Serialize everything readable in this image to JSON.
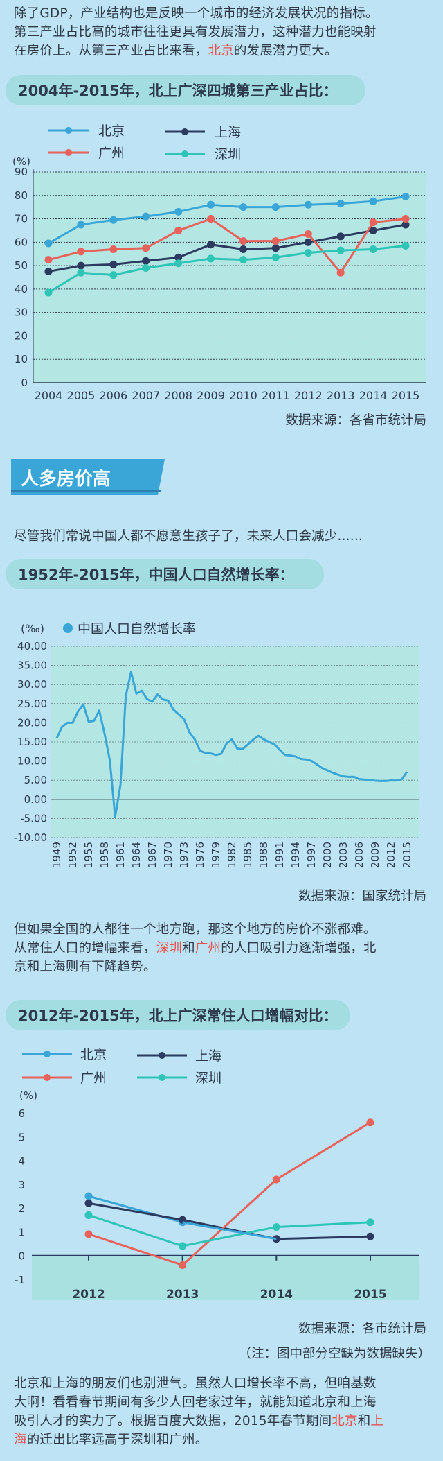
{
  "intro": {
    "line1": "除了GDP，产业结构也是反映一个城市的经济发展状况的指标。",
    "line2": "第三产业占比高的城市往往更具有发展潜力，这种潜力也能映射",
    "line3_pre": "在房价上。从第三产业占比来看，",
    "line3_hl": "北京",
    "line3_post": "的发展潜力更大。"
  },
  "chart1_heading": "2004年-2015年，北上广深四城第三产业占比：",
  "chart1_source": "数据来源：各省市统计局",
  "section_banner": "人多房价高",
  "para2": "尽管我们常说中国人都不愿意生孩子了，未来人口会减少......",
  "chart2_heading": "1952年-2015年，中国人口自然增长率：",
  "chart2_source": "数据来源：国家统计局",
  "para3": {
    "line1": "但如果全国的人都往一个地方跑，那这个地方的房价不涨都难。",
    "line2_pre": "从常住人口的增幅来看，",
    "line2_hl1": "深圳",
    "line2_mid": "和",
    "line2_hl2": "广州",
    "line2_post": "的人口吸引力逐渐增强，北",
    "line3": "京和上海则有下降趋势。"
  },
  "chart3_heading": "2012年-2015年，北上广深常住人口增幅对比：",
  "chart3_source": "数据来源：各市统计局",
  "chart3_note": "（注：图中部分空缺为数据缺失）",
  "para4": {
    "line1": "北京和上海的朋友们也别泄气。虽然人口增长率不高，但咱基数",
    "line2": "大啊！看看春节期间有多少人回老家过年，就能知道北京和上海",
    "line3_pre": "吸引人才的实力了。根据百度大数据，2015年春节期间",
    "line3_hl1": "北京",
    "line3_mid": "和",
    "line3_hl2": "上",
    "line4_hl": "海",
    "line4_post": "的迁出比率远高于深圳和广州。"
  },
  "colors": {
    "beijing": "#3aa6d8",
    "shanghai": "#2b3a5e",
    "guangzhou": "#e8625c",
    "shenzhen": "#2ec4b6",
    "rate": "#3aa6d8",
    "highlight": "#e8524f"
  },
  "chart_data": [
    {
      "type": "line",
      "ylabel": "(%)",
      "ylim": [
        0,
        90
      ],
      "yticks": [
        0,
        10,
        20,
        30,
        40,
        50,
        60,
        70,
        80,
        90
      ],
      "grid": true,
      "legend_position": "top-left",
      "x": [
        "2004",
        "2005",
        "2006",
        "2007",
        "2008",
        "2009",
        "2010",
        "2011",
        "2012",
        "2013",
        "2014",
        "2015"
      ],
      "series": [
        {
          "name": "北京",
          "color": "#3aa6d8",
          "values": [
            59.5,
            67.5,
            69.5,
            71,
            73,
            76,
            75,
            75,
            76,
            76.5,
            77.5,
            79.5
          ]
        },
        {
          "name": "上海",
          "color": "#2b3a5e",
          "values": [
            47.5,
            50,
            50.5,
            52,
            53.5,
            59,
            57,
            57.5,
            60,
            62.5,
            65,
            67.5
          ]
        },
        {
          "name": "广州",
          "color": "#e8625c",
          "values": [
            52.5,
            56,
            57,
            57.5,
            65,
            70,
            60.5,
            60.5,
            63.5,
            47,
            68.5,
            70
          ]
        },
        {
          "name": "深圳",
          "color": "#2ec4b6",
          "values": [
            38.5,
            47,
            46,
            49,
            51,
            53,
            52.5,
            53.5,
            55.5,
            56.5,
            57,
            58.5
          ]
        }
      ]
    },
    {
      "type": "line",
      "ylabel": "(‰)",
      "ylim": [
        -10,
        40
      ],
      "yticks": [
        "-10.00",
        "-5.00",
        "0.00",
        "5.00",
        "10.00",
        "15.00",
        "20.00",
        "25.00",
        "30.00",
        "35.00",
        "40.00"
      ],
      "grid": true,
      "legend_position": "top-left",
      "xticks": [
        "1949",
        "1952",
        "1955",
        "1958",
        "1961",
        "1964",
        "1967",
        "1970",
        "1973",
        "1976",
        "1979",
        "1982",
        "1985",
        "1988",
        "1991",
        "1994",
        "1997",
        "2000",
        "2003",
        "2006",
        "2009",
        "2012",
        "2015"
      ],
      "series": [
        {
          "name": "中国人口自然增长率",
          "color": "#3aa6d8",
          "years": [
            1949,
            1950,
            1951,
            1952,
            1953,
            1954,
            1955,
            1956,
            1957,
            1958,
            1959,
            1960,
            1961,
            1962,
            1963,
            1964,
            1965,
            1966,
            1967,
            1968,
            1969,
            1970,
            1971,
            1972,
            1973,
            1974,
            1975,
            1976,
            1977,
            1978,
            1979,
            1980,
            1981,
            1982,
            1983,
            1984,
            1985,
            1986,
            1987,
            1988,
            1989,
            1990,
            1991,
            1992,
            1993,
            1994,
            1995,
            1996,
            1997,
            1998,
            1999,
            2000,
            2001,
            2002,
            2003,
            2004,
            2005,
            2006,
            2007,
            2008,
            2009,
            2010,
            2011,
            2012,
            2013,
            2014,
            2015
          ],
          "values": [
            16.0,
            19.0,
            20.0,
            20.0,
            23.0,
            24.8,
            20.3,
            20.5,
            23.2,
            17.2,
            10.2,
            -4.6,
            3.8,
            27.0,
            33.3,
            27.6,
            28.4,
            26.2,
            25.5,
            27.4,
            26.1,
            25.8,
            23.4,
            22.2,
            20.9,
            17.5,
            15.7,
            12.7,
            12.1,
            12.0,
            11.6,
            11.9,
            14.6,
            15.7,
            13.3,
            13.1,
            14.3,
            15.6,
            16.6,
            15.7,
            15.0,
            14.4,
            12.98,
            11.6,
            11.45,
            11.21,
            10.55,
            10.42,
            10.06,
            9.14,
            8.18,
            7.58,
            6.95,
            6.45,
            6.01,
            5.87,
            5.89,
            5.28,
            5.17,
            5.08,
            4.87,
            4.79,
            4.79,
            4.95,
            4.92,
            5.21,
            7.2
          ]
        }
      ]
    },
    {
      "type": "line",
      "ylabel": "(%)",
      "ylim": [
        -1,
        6
      ],
      "yticks": [
        -1,
        0,
        1,
        2,
        3,
        4,
        5,
        6
      ],
      "grid": false,
      "legend_position": "top-left",
      "x": [
        "2012",
        "2013",
        "2014",
        "2015"
      ],
      "series": [
        {
          "name": "北京",
          "color": "#3aa6d8",
          "values": [
            2.5,
            1.4,
            null,
            null
          ]
        },
        {
          "name": "上海",
          "color": "#2b3a5e",
          "values": [
            2.2,
            1.5,
            0.7,
            0.8
          ]
        },
        {
          "name": "广州",
          "color": "#e8625c",
          "values": [
            0.9,
            -0.4,
            3.2,
            5.6
          ]
        },
        {
          "name": "深圳",
          "color": "#2ec4b6",
          "values": [
            1.7,
            0.4,
            1.2,
            1.4
          ]
        }
      ],
      "beijing_note_segment": [
        [
          1,
          1.4
        ],
        [
          2,
          0.7
        ]
      ]
    }
  ]
}
